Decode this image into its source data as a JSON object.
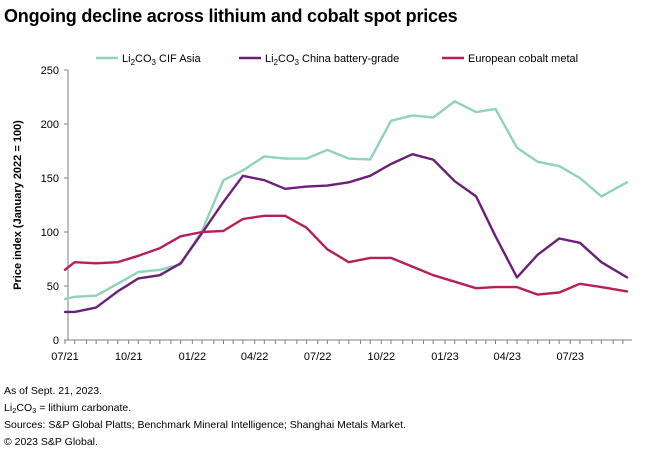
{
  "title": "Ongoing decline across lithium and cobalt spot prices",
  "colors": {
    "lithium_cif_asia": "#8fd3b9",
    "lithium_china": "#6b2077",
    "cobalt_europe": "#b51f5a",
    "axis": "#7f7f7f",
    "text": "#000000"
  },
  "footnotes": {
    "as_of": "As of Sept. 21, 2023.",
    "li2co3_prefix": "Li",
    "li2co3_sub1": "2",
    "li2co3_mid": "CO",
    "li2co3_sub2": "3",
    "li2co3_suffix": " = lithium carbonate.",
    "sources": "Sources: S&P Global Platts; Benchmark Mineral Intelligence; Shanghai Metals Market.",
    "copyright": "© 2023 S&P Global."
  },
  "chart_data": {
    "type": "line",
    "title": "Ongoing decline across lithium and cobalt spot prices",
    "xlabel": "",
    "ylabel": "Price index (January 2022 = 100)",
    "ylim": [
      0,
      250
    ],
    "yticks": [
      0,
      50,
      100,
      150,
      200,
      250
    ],
    "grid": false,
    "legend_position": "top",
    "x_tick_labels": [
      "07/21",
      "10/21",
      "01/22",
      "04/22",
      "07/22",
      "10/22",
      "01/23",
      "04/23",
      "07/23"
    ],
    "x": [
      "2021-07-01",
      "2021-07-15",
      "2021-08-01",
      "2021-08-15",
      "2021-09-01",
      "2021-09-15",
      "2021-10-01",
      "2021-10-15",
      "2021-11-01",
      "2021-11-15",
      "2021-12-01",
      "2021-12-15",
      "2022-01-01",
      "2022-01-15",
      "2022-02-01",
      "2022-02-15",
      "2022-03-01",
      "2022-03-15",
      "2022-04-01",
      "2022-04-15",
      "2022-05-01",
      "2022-05-15",
      "2022-06-01",
      "2022-06-15",
      "2022-07-01",
      "2022-07-15",
      "2022-08-01",
      "2022-08-15",
      "2022-09-01",
      "2022-09-15",
      "2022-10-01",
      "2022-10-15",
      "2022-11-01",
      "2022-11-15",
      "2022-12-01",
      "2022-12-15",
      "2023-01-01",
      "2023-01-15",
      "2023-02-01",
      "2023-02-15",
      "2023-03-01",
      "2023-03-15",
      "2023-04-01",
      "2023-04-15",
      "2023-05-01",
      "2023-05-15",
      "2023-06-01",
      "2023-06-15",
      "2023-07-01",
      "2023-07-15",
      "2023-08-01",
      "2023-08-15",
      "2023-09-01",
      "2023-09-15",
      "2023-09-21"
    ],
    "series": [
      {
        "name": "Li2CO3 CIF Asia",
        "name_parts": [
          "Li",
          "2",
          "CO",
          "3",
          " CIF Asia"
        ],
        "color_key": "lithium_cif_asia",
        "points": [
          [
            "2021-07-01",
            38
          ],
          [
            "2021-07-15",
            40
          ],
          [
            "2021-08-15",
            41
          ],
          [
            "2021-09-15",
            52
          ],
          [
            "2021-10-15",
            63
          ],
          [
            "2021-11-15",
            65
          ],
          [
            "2021-12-15",
            70
          ],
          [
            "2022-01-15",
            101
          ],
          [
            "2022-02-15",
            148
          ],
          [
            "2022-03-15",
            157
          ],
          [
            "2022-04-15",
            170
          ],
          [
            "2022-05-15",
            168
          ],
          [
            "2022-06-15",
            168
          ],
          [
            "2022-07-15",
            176
          ],
          [
            "2022-08-15",
            168
          ],
          [
            "2022-09-15",
            167
          ],
          [
            "2022-10-15",
            203
          ],
          [
            "2022-11-15",
            208
          ],
          [
            "2022-12-15",
            206
          ],
          [
            "2023-01-15",
            221
          ],
          [
            "2023-02-15",
            211
          ],
          [
            "2023-03-15",
            214
          ],
          [
            "2023-04-15",
            178
          ],
          [
            "2023-05-15",
            165
          ],
          [
            "2023-06-15",
            161
          ],
          [
            "2023-07-15",
            150
          ],
          [
            "2023-08-15",
            133
          ],
          [
            "2023-09-21",
            146
          ]
        ]
      },
      {
        "name": "Li2CO3 China battery-grade",
        "name_parts": [
          "Li",
          "2",
          "CO",
          "3",
          " China battery-grade"
        ],
        "color_key": "lithium_china",
        "points": [
          [
            "2021-07-01",
            26
          ],
          [
            "2021-07-15",
            26
          ],
          [
            "2021-08-15",
            30
          ],
          [
            "2021-09-15",
            45
          ],
          [
            "2021-10-15",
            57
          ],
          [
            "2021-11-15",
            60
          ],
          [
            "2021-12-15",
            71
          ],
          [
            "2022-01-15",
            99
          ],
          [
            "2022-02-15",
            128
          ],
          [
            "2022-03-15",
            152
          ],
          [
            "2022-04-15",
            148
          ],
          [
            "2022-05-15",
            140
          ],
          [
            "2022-06-15",
            142
          ],
          [
            "2022-07-15",
            143
          ],
          [
            "2022-08-15",
            146
          ],
          [
            "2022-09-15",
            152
          ],
          [
            "2022-10-15",
            163
          ],
          [
            "2022-11-15",
            172
          ],
          [
            "2022-12-15",
            167
          ],
          [
            "2023-01-15",
            147
          ],
          [
            "2023-02-15",
            133
          ],
          [
            "2023-03-15",
            96
          ],
          [
            "2023-04-15",
            58
          ],
          [
            "2023-05-15",
            79
          ],
          [
            "2023-06-15",
            94
          ],
          [
            "2023-07-15",
            90
          ],
          [
            "2023-08-15",
            72
          ],
          [
            "2023-09-21",
            58
          ]
        ]
      },
      {
        "name": "European cobalt metal",
        "name_parts": [
          "European cobalt metal"
        ],
        "color_key": "cobalt_europe",
        "points": [
          [
            "2021-07-01",
            65
          ],
          [
            "2021-07-15",
            72
          ],
          [
            "2021-08-15",
            71
          ],
          [
            "2021-09-15",
            72
          ],
          [
            "2021-10-15",
            78
          ],
          [
            "2021-11-15",
            85
          ],
          [
            "2021-12-15",
            96
          ],
          [
            "2022-01-15",
            100
          ],
          [
            "2022-02-15",
            101
          ],
          [
            "2022-03-15",
            112
          ],
          [
            "2022-04-15",
            115
          ],
          [
            "2022-05-15",
            115
          ],
          [
            "2022-06-15",
            104
          ],
          [
            "2022-07-15",
            84
          ],
          [
            "2022-08-15",
            72
          ],
          [
            "2022-09-15",
            76
          ],
          [
            "2022-10-15",
            76
          ],
          [
            "2022-11-15",
            68
          ],
          [
            "2022-12-15",
            60
          ],
          [
            "2023-01-15",
            54
          ],
          [
            "2023-02-15",
            48
          ],
          [
            "2023-03-15",
            49
          ],
          [
            "2023-04-15",
            49
          ],
          [
            "2023-05-15",
            42
          ],
          [
            "2023-06-15",
            44
          ],
          [
            "2023-07-15",
            52
          ],
          [
            "2023-08-15",
            49
          ],
          [
            "2023-09-21",
            45
          ]
        ]
      }
    ]
  }
}
